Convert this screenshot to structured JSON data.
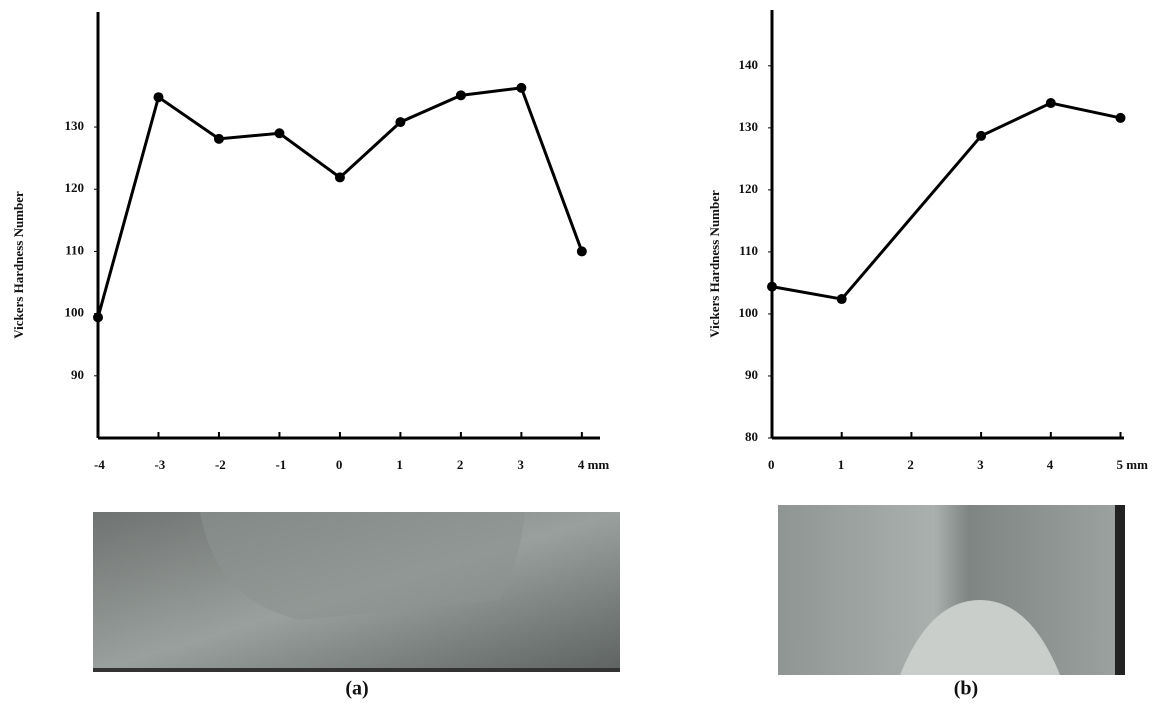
{
  "chart_data": [
    {
      "type": "line",
      "caption": "(a)",
      "ylabel": "Vickers Hardness Number",
      "x": [
        -4,
        -3,
        -2,
        -1,
        0,
        1,
        2,
        3,
        4
      ],
      "values": [
        99.4,
        134.8,
        128.1,
        129,
        121.9,
        130.8,
        135.1,
        136.3,
        110
      ],
      "color": "#000000",
      "xlim": [
        -4,
        4.3
      ],
      "xticks": [
        -4,
        -3,
        -2,
        -1,
        0,
        1,
        2,
        3,
        {
          "value": 4,
          "label": "4 mm"
        }
      ],
      "ylim": [
        80,
        148.5
      ],
      "yticks": [
        90,
        100,
        110,
        120,
        130
      ]
    },
    {
      "type": "line",
      "caption": "(b)",
      "ylabel": "Vickers Hardness Number",
      "x": [
        0,
        1,
        3,
        4,
        5
      ],
      "values": [
        104.4,
        102.4,
        128.7,
        134,
        131.6
      ],
      "color": "#000000",
      "xlim": [
        0,
        5.05
      ],
      "xticks": [
        0,
        1,
        2,
        3,
        4,
        {
          "value": 5,
          "label": "5 mm"
        }
      ],
      "ylim": [
        80,
        149
      ],
      "yticks": [
        80,
        90,
        100,
        110,
        120,
        130,
        140
      ]
    }
  ]
}
